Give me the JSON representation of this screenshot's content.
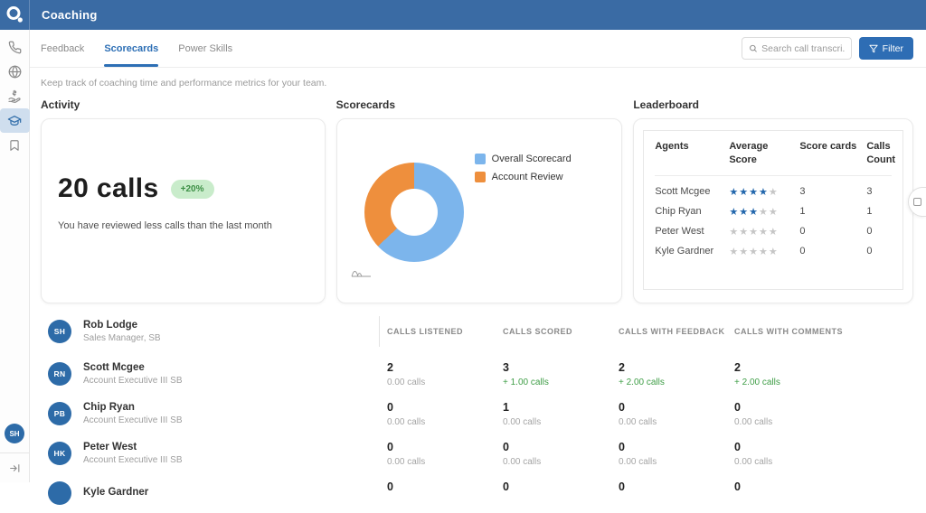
{
  "topbar": {
    "title": "Coaching"
  },
  "sidebar": {
    "icons": [
      {
        "name": "calls"
      },
      {
        "name": "globe"
      },
      {
        "name": "commission"
      },
      {
        "name": "coaching",
        "active": true
      },
      {
        "name": "bookmarks"
      }
    ],
    "user_initials": "SH"
  },
  "tabs": {
    "items": [
      {
        "label": "Feedback",
        "active": false
      },
      {
        "label": "Scorecards",
        "active": true
      },
      {
        "label": "Power Skills",
        "active": false
      }
    ]
  },
  "toolbar": {
    "search_placeholder": "Search call transcri...",
    "filter_label": "Filter"
  },
  "page": {
    "subtitle": "Keep track of coaching time and performance metrics for your team."
  },
  "activity": {
    "section_title": "Activity",
    "value": "20 calls",
    "badge": "+20%",
    "description": "You have reviewed less calls than the last month"
  },
  "scorecards": {
    "section_title": "Scorecards",
    "chart_data": {
      "type": "pie",
      "donut": true,
      "labels": [
        "Overall Scorecard",
        "Account Review"
      ],
      "values": [
        63,
        37
      ],
      "colors": [
        "#7cb5ec",
        "#ee8f3d"
      ],
      "legend_position": "right"
    },
    "legend": [
      {
        "label": "Overall Scorecard",
        "color": "#7cb5ec"
      },
      {
        "label": "Account Review",
        "color": "#ee8f3d"
      }
    ]
  },
  "leaderboard": {
    "section_title": "Leaderboard",
    "headers": [
      "Agents",
      "Average Score",
      "Score cards",
      "Calls Count"
    ],
    "rows": [
      {
        "name": "Scott Mcgee",
        "stars": 4,
        "score_cards": "3",
        "calls_count": "3"
      },
      {
        "name": "Chip Ryan",
        "stars": 3,
        "score_cards": "1",
        "calls_count": "1"
      },
      {
        "name": "Peter West",
        "stars": 0,
        "score_cards": "0",
        "calls_count": "0"
      },
      {
        "name": "Kyle Gardner",
        "stars": 0,
        "score_cards": "0",
        "calls_count": "0"
      }
    ]
  },
  "team_table": {
    "manager": {
      "initials": "SH",
      "name": "Rob Lodge",
      "role": "Sales Manager, SB"
    },
    "columns": [
      "CALLS LISTENED",
      "CALLS SCORED",
      "CALLS WITH FEEDBACK",
      "CALLS WITH COMMENTS"
    ],
    "rows": [
      {
        "initials": "RN",
        "name": "Scott Mcgee",
        "role": "Account Executive III SB",
        "cells": [
          {
            "value": "2",
            "delta": "0.00 calls",
            "positive": false
          },
          {
            "value": "3",
            "delta": "+ 1.00 calls",
            "positive": true
          },
          {
            "value": "2",
            "delta": "+ 2.00 calls",
            "positive": true
          },
          {
            "value": "2",
            "delta": "+ 2.00 calls",
            "positive": true
          }
        ]
      },
      {
        "initials": "PB",
        "name": "Chip Ryan",
        "role": "Account Executive III SB",
        "cells": [
          {
            "value": "0",
            "delta": "0.00 calls",
            "positive": false
          },
          {
            "value": "1",
            "delta": "0.00 calls",
            "positive": false
          },
          {
            "value": "0",
            "delta": "0.00 calls",
            "positive": false
          },
          {
            "value": "0",
            "delta": "0.00 calls",
            "positive": false
          }
        ]
      },
      {
        "initials": "HK",
        "name": "Peter West",
        "role": "Account Executive III SB",
        "cells": [
          {
            "value": "0",
            "delta": "0.00 calls",
            "positive": false
          },
          {
            "value": "0",
            "delta": "0.00 calls",
            "positive": false
          },
          {
            "value": "0",
            "delta": "0.00 calls",
            "positive": false
          },
          {
            "value": "0",
            "delta": "0.00 calls",
            "positive": false
          }
        ]
      },
      {
        "initials": "",
        "name": "Kyle Gardner",
        "role": "",
        "cells": [
          {
            "value": "0",
            "delta": "",
            "positive": false
          },
          {
            "value": "0",
            "delta": "",
            "positive": false
          },
          {
            "value": "0",
            "delta": "",
            "positive": false
          },
          {
            "value": "0",
            "delta": "",
            "positive": false
          }
        ]
      }
    ]
  },
  "colors": {
    "topbar": "#3a6ba4",
    "accent_blue": "#2d6fb5",
    "avatar_blue": "#2d6ba8",
    "star_filled": "#2166ac",
    "green_text": "#3f9e47",
    "green_badge_bg": "#c9eccb",
    "donut_blue": "#7cb5ec",
    "donut_orange": "#ee8f3d"
  }
}
